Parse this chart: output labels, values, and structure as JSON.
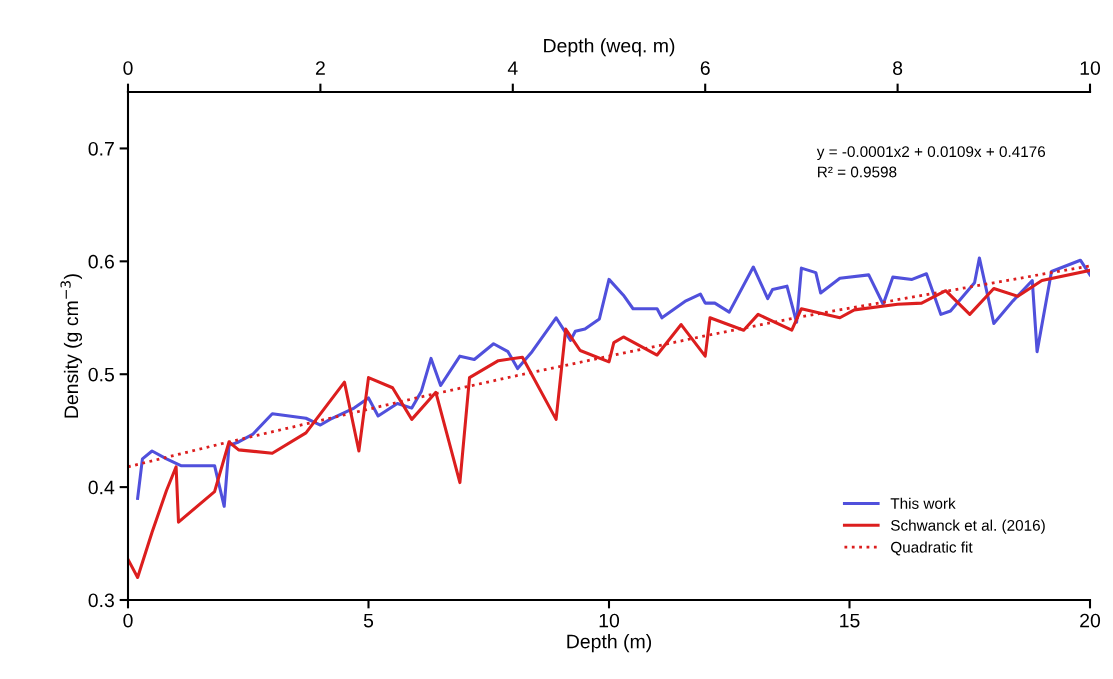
{
  "chart_data": {
    "type": "line",
    "xlabel": "Depth (m)",
    "ylabel": "Density (g cm$^{−3}$)",
    "x2label": "Depth (weq. m)",
    "xlim": [
      0,
      20
    ],
    "xticks": [
      0,
      5,
      10,
      15,
      20
    ],
    "x2lim": [
      0,
      10
    ],
    "x2ticks": [
      0,
      2,
      4,
      6,
      8,
      10
    ],
    "ylim": [
      0.3,
      0.75
    ],
    "yticks": [
      0.3,
      0.4,
      0.5,
      0.6,
      0.7
    ],
    "grid": false,
    "legend": "bottom right",
    "annotations": [
      "y = -0.0001x2 + 0.0109x + 0.4176",
      "R² = 0.9598"
    ],
    "series": [
      {
        "name": "This work",
        "color": "#5050dc",
        "line_style": "solid",
        "x": [
          0.2,
          0.3,
          0.5,
          0.8,
          1.1,
          1.5,
          1.8,
          2.0,
          2.1,
          2.3,
          2.6,
          3.0,
          3.7,
          4.0,
          4.2,
          4.7,
          5.0,
          5.2,
          5.6,
          5.9,
          6.1,
          6.3,
          6.5,
          6.9,
          7.2,
          7.6,
          7.9,
          8.1,
          8.4,
          8.9,
          9.2,
          9.3,
          9.5,
          9.8,
          10.0,
          10.3,
          10.5,
          11.0,
          11.1,
          11.6,
          11.9,
          12.0,
          12.2,
          12.5,
          13.0,
          13.3,
          13.4,
          13.7,
          13.9,
          14.0,
          14.3,
          14.4,
          14.8,
          15.4,
          15.7,
          15.9,
          16.3,
          16.6,
          16.9,
          17.1,
          17.6,
          17.7,
          18.0,
          18.4,
          18.8,
          18.9,
          19.2,
          19.8,
          20.0
        ],
        "values": [
          0.39,
          0.425,
          0.432,
          0.425,
          0.419,
          0.419,
          0.419,
          0.383,
          0.437,
          0.44,
          0.447,
          0.465,
          0.461,
          0.455,
          0.46,
          0.47,
          0.479,
          0.463,
          0.474,
          0.47,
          0.485,
          0.514,
          0.49,
          0.516,
          0.513,
          0.527,
          0.52,
          0.505,
          0.52,
          0.55,
          0.53,
          0.538,
          0.54,
          0.549,
          0.584,
          0.57,
          0.558,
          0.558,
          0.55,
          0.565,
          0.571,
          0.563,
          0.563,
          0.555,
          0.595,
          0.567,
          0.575,
          0.578,
          0.546,
          0.594,
          0.59,
          0.572,
          0.585,
          0.588,
          0.562,
          0.586,
          0.584,
          0.589,
          0.553,
          0.556,
          0.581,
          0.603,
          0.545,
          0.565,
          0.583,
          0.52,
          0.591,
          0.601,
          0.588
        ]
      },
      {
        "name": "Schwanck et al. (2016)",
        "color": "#dc1e1e",
        "line_style": "solid",
        "x": [
          0.0,
          0.2,
          0.5,
          0.8,
          1.0,
          1.05,
          1.8,
          2.1,
          2.3,
          3.0,
          3.7,
          4.5,
          4.8,
          5.0,
          5.5,
          5.9,
          6.4,
          6.9,
          7.1,
          7.7,
          8.2,
          8.9,
          9.1,
          9.4,
          10.0,
          10.1,
          10.3,
          11.0,
          11.5,
          12.0,
          12.1,
          12.8,
          13.1,
          13.8,
          14.0,
          14.8,
          15.1,
          16.0,
          16.5,
          17.0,
          17.5,
          18.0,
          18.5,
          19.0,
          20.0
        ],
        "values": [
          0.336,
          0.32,
          0.36,
          0.397,
          0.418,
          0.369,
          0.396,
          0.44,
          0.433,
          0.43,
          0.448,
          0.493,
          0.432,
          0.497,
          0.488,
          0.46,
          0.484,
          0.404,
          0.497,
          0.512,
          0.515,
          0.46,
          0.54,
          0.521,
          0.511,
          0.528,
          0.533,
          0.517,
          0.544,
          0.516,
          0.55,
          0.539,
          0.553,
          0.539,
          0.558,
          0.55,
          0.557,
          0.562,
          0.563,
          0.574,
          0.553,
          0.576,
          0.569,
          0.583,
          0.592
        ]
      },
      {
        "name": "Quadratic fit",
        "color": "#dc1e1e",
        "line_style": "dotted",
        "x": [
          0,
          2,
          4,
          6,
          8,
          10,
          12,
          14,
          16,
          18,
          20
        ],
        "values": [
          0.418,
          0.439,
          0.459,
          0.479,
          0.498,
          0.516,
          0.534,
          0.551,
          0.566,
          0.581,
          0.596
        ]
      }
    ]
  }
}
